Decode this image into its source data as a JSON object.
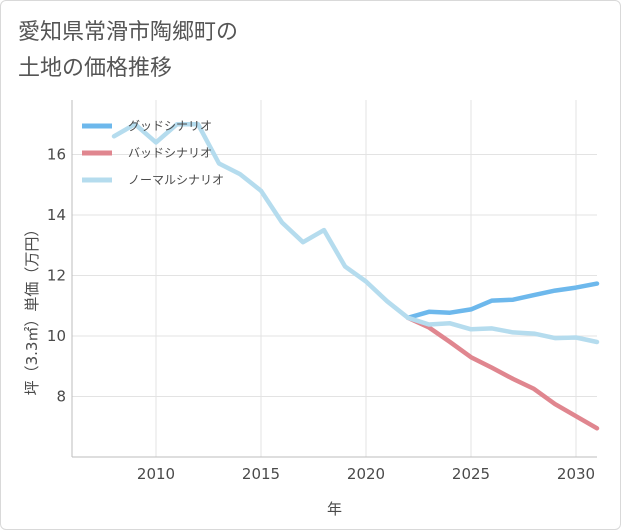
{
  "title_lines": [
    "愛知県常滑市陶郷町の",
    "土地の価格推移"
  ],
  "chart_data": {
    "type": "line",
    "xlabel": "年",
    "ylabel": "坪（3.3㎡）単価（万円）",
    "xlim": [
      2006,
      2031
    ],
    "ylim": [
      6,
      17.8
    ],
    "x_ticks": [
      2010,
      2015,
      2020,
      2025,
      2030
    ],
    "y_ticks": [
      8,
      10,
      12,
      14,
      16
    ],
    "grid": true,
    "legend_position": "top-left",
    "series": [
      {
        "name": "グッドシナリオ",
        "color": "#6db8ec",
        "x": [
          2022,
          2023,
          2024,
          2025,
          2026,
          2027,
          2028,
          2029,
          2030,
          2031
        ],
        "y": [
          10.6,
          10.8,
          10.77,
          10.88,
          11.17,
          11.2,
          11.35,
          11.5,
          11.6,
          11.73
        ]
      },
      {
        "name": "バッドシナリオ",
        "color": "#e0868f",
        "x": [
          2022,
          2023,
          2024,
          2025,
          2026,
          2027,
          2028,
          2029,
          2030,
          2031
        ],
        "y": [
          10.6,
          10.28,
          9.8,
          9.3,
          8.95,
          8.58,
          8.25,
          7.75,
          7.35,
          6.95
        ]
      },
      {
        "name": "ノーマルシナリオ",
        "color": "#b5dcee",
        "x": [
          2008,
          2009,
          2010,
          2011,
          2012,
          2013,
          2014,
          2015,
          2016,
          2017,
          2018,
          2019,
          2020,
          2021,
          2022,
          2023,
          2024,
          2025,
          2026,
          2027,
          2028,
          2029,
          2030,
          2031
        ],
        "y": [
          16.6,
          17.0,
          16.4,
          17.0,
          17.0,
          15.7,
          15.35,
          14.8,
          13.75,
          13.1,
          13.5,
          12.3,
          11.8,
          11.15,
          10.6,
          10.38,
          10.42,
          10.22,
          10.25,
          10.12,
          10.08,
          9.93,
          9.95,
          9.8
        ]
      }
    ]
  }
}
